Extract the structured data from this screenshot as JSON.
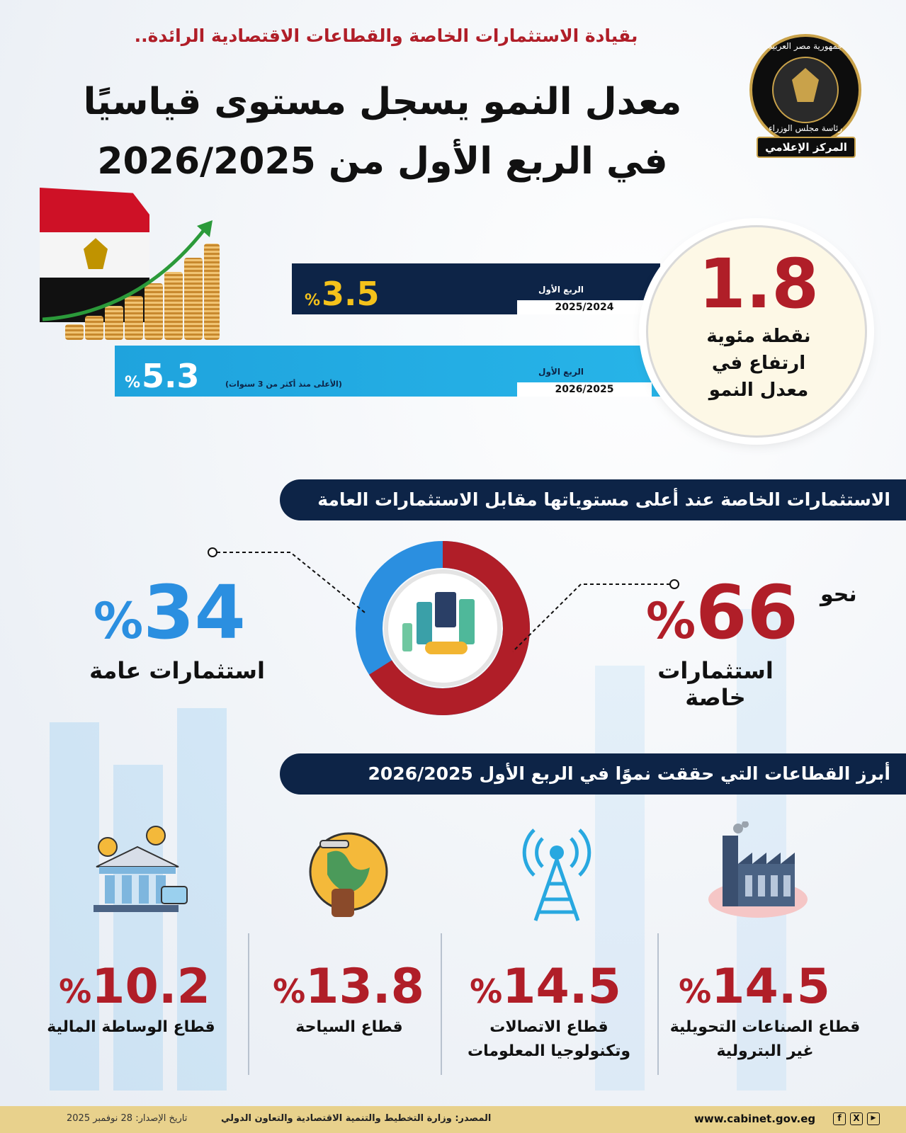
{
  "header": {
    "subtitle": "بقيادة الاستثمارات الخاصة والقطاعات الاقتصادية الرائدة..",
    "title_line1": "معدل النمو يسجل مستوى قياسيًا",
    "title_line2": "في الربع الأول من 2026/2025"
  },
  "logo": {
    "top_text": "جمهورية مصر العربية",
    "ring_text": "رئاسة مجلس الوزراء",
    "banner": "المركز الإعلامي"
  },
  "growth": {
    "bar1": {
      "value": "3.5",
      "percent": "%",
      "quarter_label": "الربع الأول",
      "year": "2025/2024",
      "color": "#0d2447",
      "value_color": "#f4c21b"
    },
    "bar2": {
      "value": "5.3",
      "percent": "%",
      "quarter_label": "الربع الأول",
      "year": "2026/2025",
      "note": "(الأعلى منذ أكثر من 3 سنوات)",
      "color": "#1fa3dd",
      "value_color": "#ffffff"
    },
    "increase": {
      "value": "1.8",
      "line1": "نقطة مئوية",
      "line2": "ارتفاع في",
      "line3": "معدل النمو"
    }
  },
  "investments": {
    "heading": "الاستثمارات الخاصة عند أعلى مستوياتها مقابل الاستثمارات العامة",
    "private": {
      "prefix": "نحو",
      "value": "66",
      "percent": "%",
      "label": "استثمارات خاصة",
      "share": 66,
      "color": "#b01e28"
    },
    "public": {
      "value": "34",
      "percent": "%",
      "label": "استثمارات عامة",
      "share": 34,
      "color": "#2b8fe0"
    }
  },
  "sectors": {
    "heading": "أبرز القطاعات التي حققت نموًا في الربع الأول 2026/2025",
    "items": [
      {
        "value": "14.5",
        "percent": "%",
        "line1": "قطاع الصناعات التحويلية",
        "line2": "غير البترولية",
        "icon": "factory-icon"
      },
      {
        "value": "14.5",
        "percent": "%",
        "line1": "قطاع الاتصالات",
        "line2": "وتكنولوجيا المعلومات",
        "icon": "tower-icon"
      },
      {
        "value": "13.8",
        "percent": "%",
        "line1": "قطاع السياحة",
        "line2": "",
        "icon": "globe-icon"
      },
      {
        "value": "10.2",
        "percent": "%",
        "line1": "قطاع الوساطة المالية",
        "line2": "",
        "icon": "bank-icon"
      }
    ]
  },
  "footer": {
    "url": "www.cabinet.gov.eg",
    "source": "المصدر: وزارة التخطيط والتنمية الاقتصادية والتعاون الدولي",
    "date": "تاريخ الإصدار: 28 نوفمبر 2025",
    "social": [
      "f",
      "X",
      "▶"
    ]
  }
}
